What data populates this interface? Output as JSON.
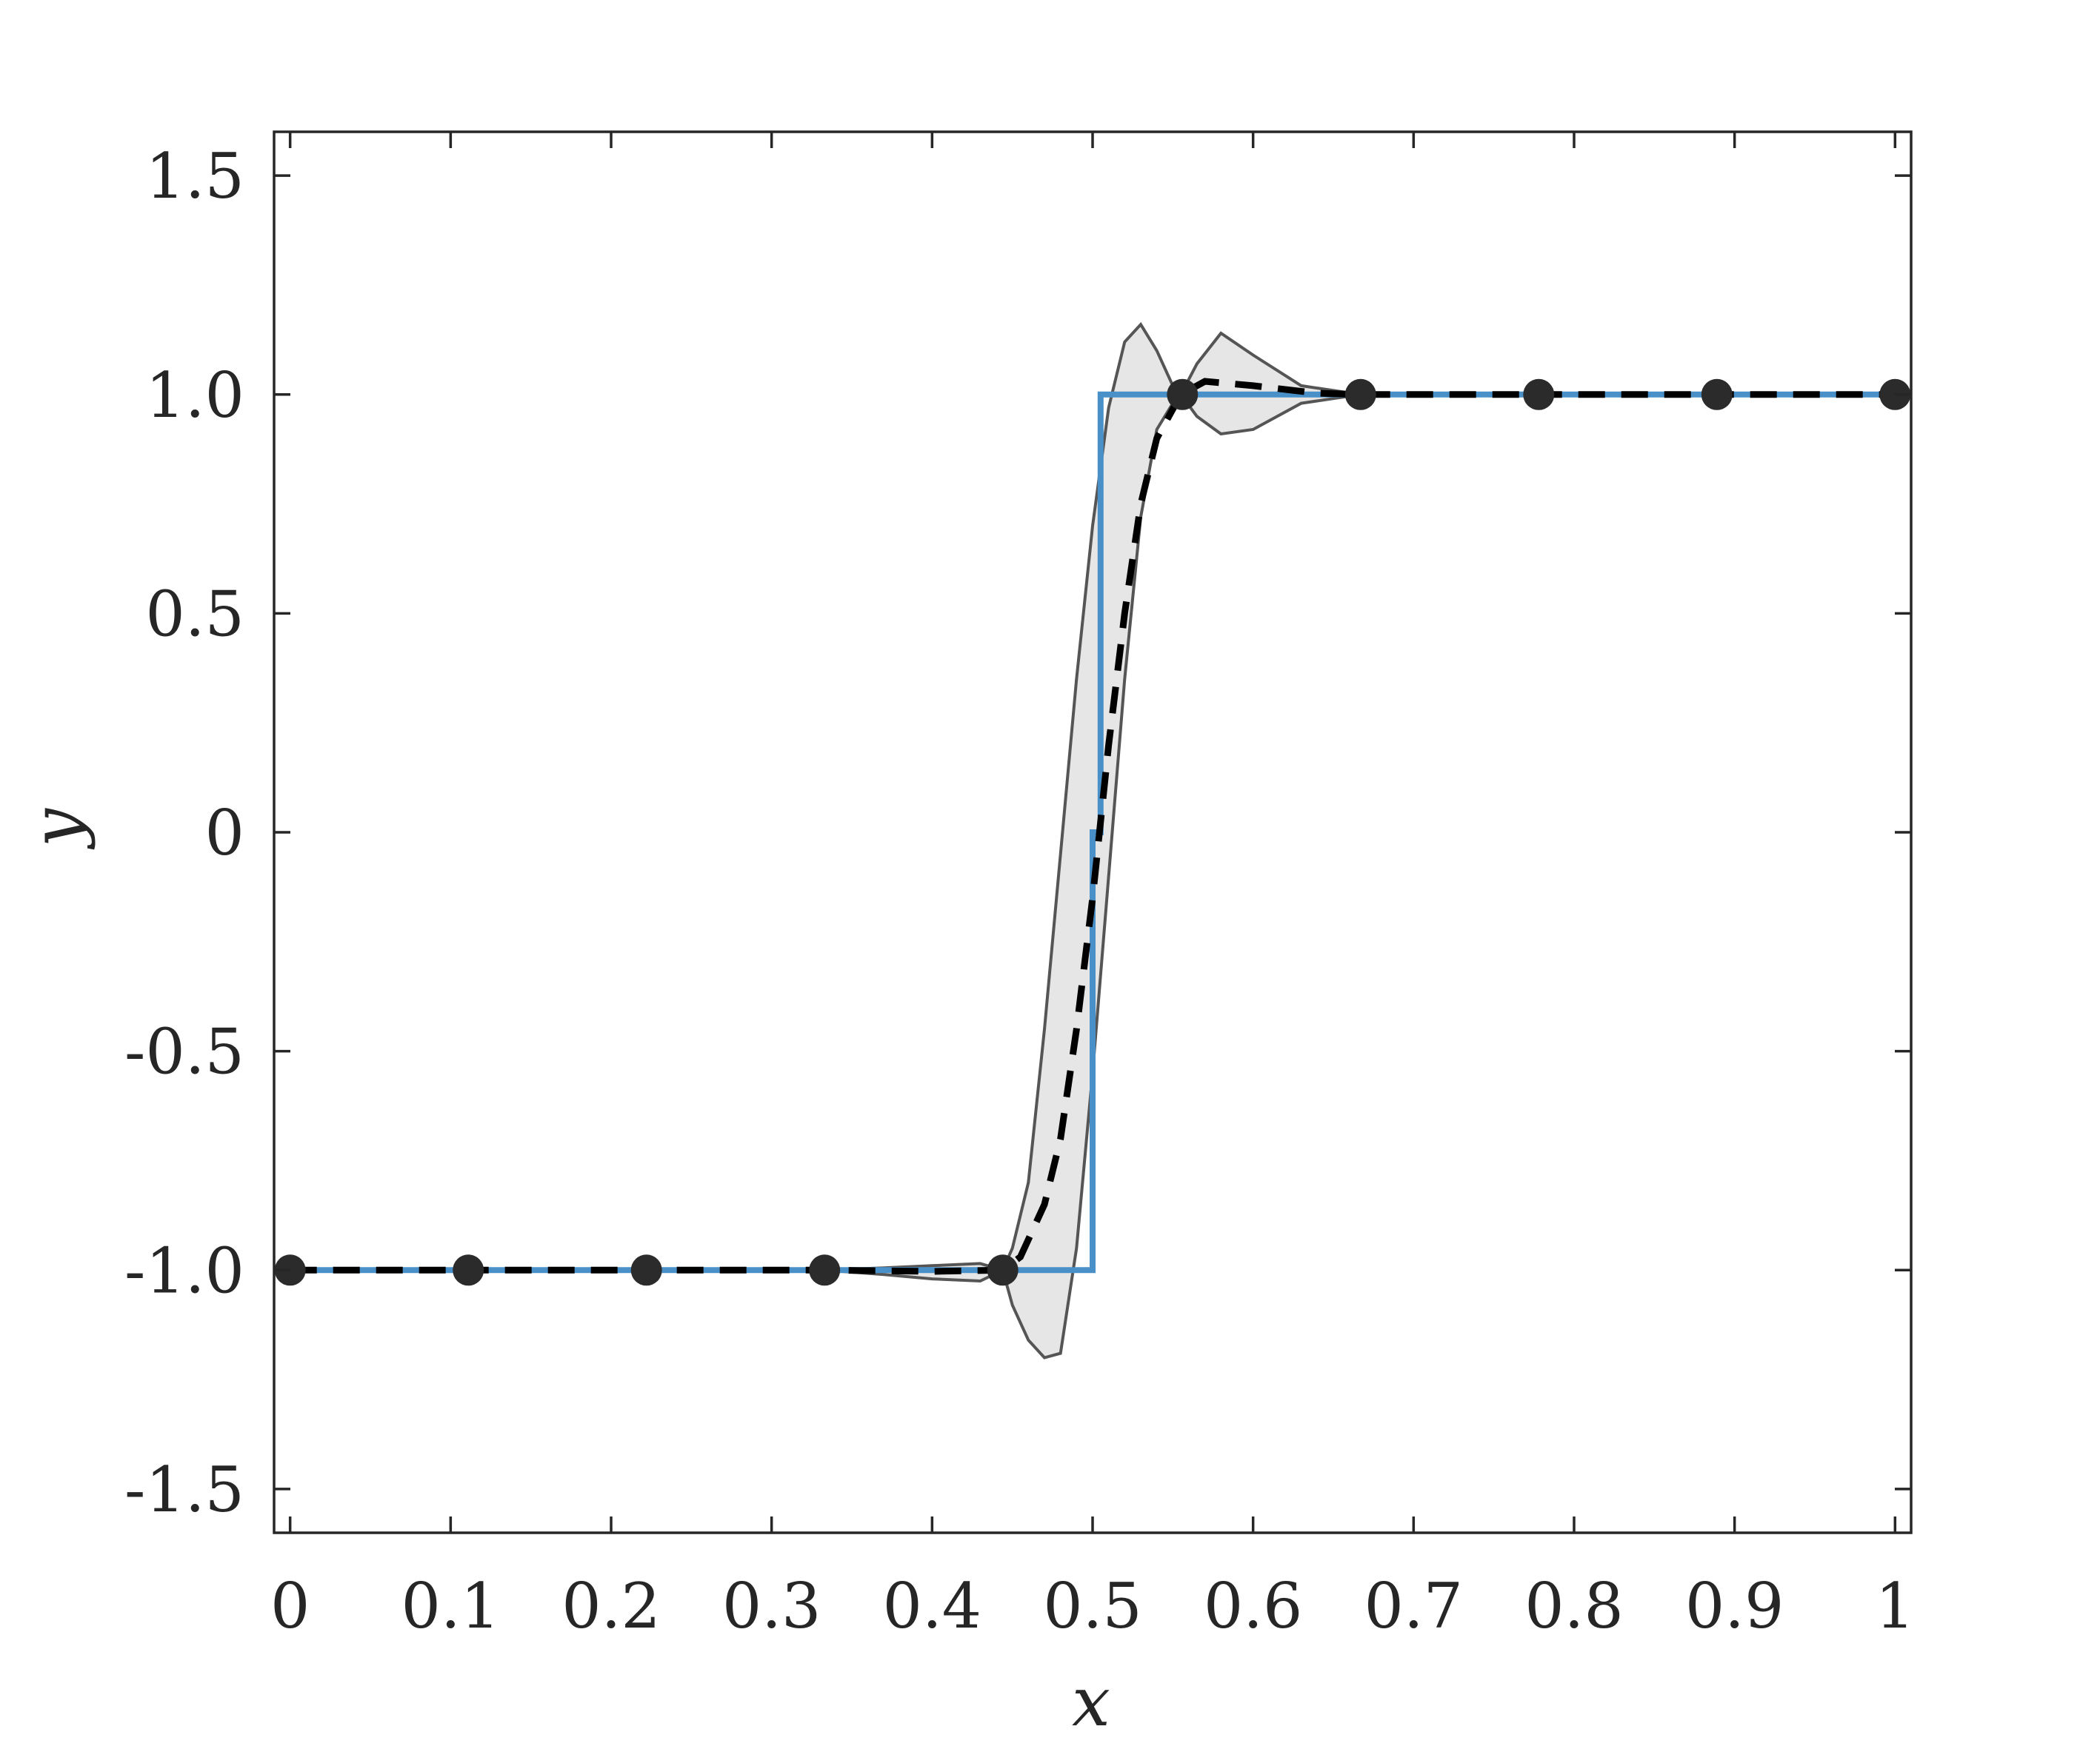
{
  "chart_data": {
    "type": "line",
    "title": "",
    "xlabel": "x",
    "ylabel": "y",
    "xlim": [
      -0.01,
      1.01
    ],
    "ylim": [
      -1.6,
      1.6
    ],
    "xticks": [
      0,
      0.1,
      0.2,
      0.3,
      0.4,
      0.5,
      0.6,
      0.7,
      0.8,
      0.9,
      1
    ],
    "xtick_labels": [
      "0",
      "0.1",
      "0.2",
      "0.3",
      "0.4",
      "0.5",
      "0.6",
      "0.7",
      "0.8",
      "0.9",
      "1"
    ],
    "yticks": [
      -1.5,
      -1.0,
      -0.5,
      0,
      0.5,
      1.0,
      1.5
    ],
    "ytick_labels": [
      "-1.5",
      "-1.0",
      "-0.5",
      "0",
      "0.5",
      "1.0",
      "1.5"
    ],
    "grid": false,
    "legend": "none",
    "colors": {
      "true_function": "#4a90c8",
      "mean": "#000000",
      "band_fill": "#e6e6e6",
      "band_edge": "#555555",
      "points": "#2b2b2b",
      "axes": "#262626"
    },
    "series": [
      {
        "kind": "step-line",
        "x": [
          0,
          0.5,
          0.5,
          0.505,
          0.505,
          1
        ],
        "y": [
          -1,
          -1,
          0,
          0,
          1,
          1
        ]
      },
      {
        "kind": "dashed-line",
        "x": [
          0,
          0.333,
          0.4,
          0.444,
          0.455,
          0.47,
          0.48,
          0.49,
          0.5,
          0.51,
          0.52,
          0.53,
          0.54,
          0.555,
          0.57,
          0.6,
          0.64,
          0.667,
          0.7,
          1
        ],
        "y": [
          -1,
          -1,
          -1.003,
          -1,
          -0.97,
          -0.85,
          -0.7,
          -0.45,
          -0.15,
          0.2,
          0.5,
          0.75,
          0.9,
          1,
          1.03,
          1.02,
          1.003,
          1,
          1,
          1
        ]
      },
      {
        "kind": "band",
        "x": [
          0,
          0.333,
          0.37,
          0.4,
          0.43,
          0.444,
          0.45,
          0.46,
          0.47,
          0.48,
          0.49,
          0.5,
          0.51,
          0.52,
          0.53,
          0.54,
          0.55,
          0.555,
          0.565,
          0.58,
          0.6,
          0.63,
          0.667,
          0.7,
          1
        ],
        "upper": [
          -1,
          -1,
          -0.995,
          -0.99,
          -0.985,
          -1,
          -0.95,
          -0.8,
          -0.45,
          -0.05,
          0.35,
          0.7,
          0.97,
          1.12,
          1.16,
          1.1,
          1.02,
          1,
          1.07,
          1.14,
          1.09,
          1.02,
          1,
          1,
          1
        ],
        "lower": [
          -1,
          -1,
          -1.01,
          -1.02,
          -1.025,
          -1,
          -1.08,
          -1.16,
          -1.2,
          -1.19,
          -0.95,
          -0.55,
          -0.1,
          0.35,
          0.72,
          0.92,
          0.98,
          1,
          0.95,
          0.91,
          0.92,
          0.98,
          1,
          1,
          1
        ]
      },
      {
        "kind": "points",
        "x": [
          0,
          0.111,
          0.222,
          0.333,
          0.444,
          0.556,
          0.667,
          0.778,
          0.889,
          1
        ],
        "y": [
          -1,
          -1,
          -1,
          -1,
          -1,
          1,
          1,
          1,
          1,
          1
        ]
      }
    ]
  }
}
